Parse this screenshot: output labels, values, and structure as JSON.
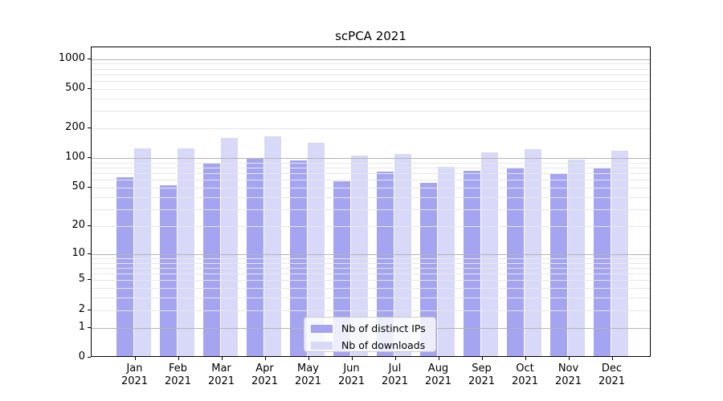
{
  "title": "scPCA 2021",
  "colors": {
    "distinct_ips": "#a4a4f0",
    "downloads": "#d8d8f9",
    "grid_major": "#b4b4b4",
    "grid_minor": "#e7e7e7",
    "spine": "#000000",
    "background": "#ffffff"
  },
  "legend": {
    "items": [
      {
        "label": "Nb of distinct IPs",
        "color_key": "distinct_ips"
      },
      {
        "label": "Nb of downloads",
        "color_key": "downloads"
      }
    ]
  },
  "chart_data": {
    "type": "bar",
    "title": "scPCA 2021",
    "categories": [
      "Jan 2021",
      "Feb 2021",
      "Mar 2021",
      "Apr 2021",
      "May 2021",
      "Jun 2021",
      "Jul 2021",
      "Aug 2021",
      "Sep 2021",
      "Oct 2021",
      "Nov 2021",
      "Dec 2021"
    ],
    "series": [
      {
        "name": "Nb of distinct IPs",
        "color_key": "distinct_ips",
        "values": [
          62,
          51,
          85,
          96,
          91,
          56,
          70,
          54,
          72,
          77,
          68,
          77
        ]
      },
      {
        "name": "Nb of downloads",
        "color_key": "downloads",
        "values": [
          122,
          122,
          154,
          161,
          138,
          102,
          106,
          79,
          110,
          120,
          93,
          114
        ]
      }
    ],
    "xlabel": "",
    "ylabel": "",
    "yscale": "log1p",
    "ylim": [
      0,
      1310
    ],
    "y_tick_values": [
      0,
      1,
      2,
      5,
      10,
      20,
      50,
      100,
      200,
      500,
      1000
    ],
    "y_major_gridlines": [
      1,
      10,
      100,
      1000
    ],
    "grid": true,
    "legend_position": "lower center"
  }
}
